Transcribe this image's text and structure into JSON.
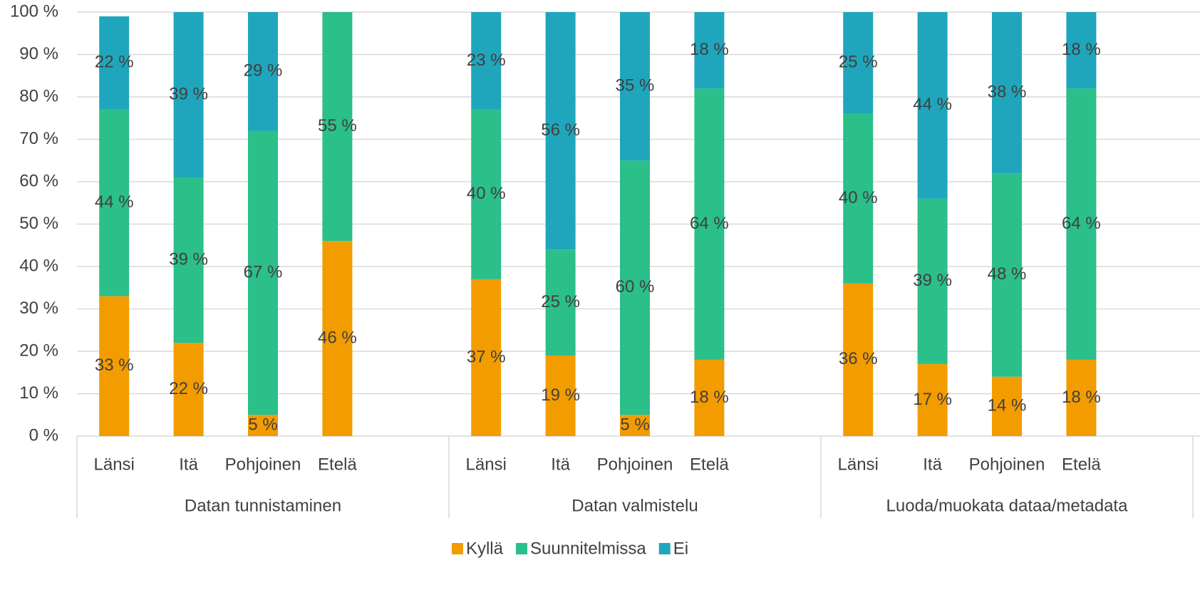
{
  "chart_data": {
    "type": "stacked_bar",
    "groups": [
      {
        "name": "Datan tunnistaminen",
        "categories": [
          "Länsi",
          "Itä",
          "Pohjoinen",
          "Etelä"
        ]
      },
      {
        "name": "Datan valmistelu",
        "categories": [
          "Länsi",
          "Itä",
          "Pohjoinen",
          "Etelä"
        ]
      },
      {
        "name": "Luoda/muokata dataa/metadata",
        "categories": [
          "Länsi",
          "Itä",
          "Pohjoinen",
          "Etelä"
        ]
      }
    ],
    "series": [
      {
        "name": "Kyllä",
        "color": "#f39c00",
        "values": [
          33,
          22,
          5,
          46,
          37,
          19,
          5,
          18,
          36,
          17,
          14,
          18
        ],
        "value_labels": [
          "33 %",
          "22 %",
          "5 %",
          "46 %",
          "37 %",
          "19 %",
          "5 %",
          "18 %",
          "36 %",
          "17 %",
          "14 %",
          "18 %"
        ]
      },
      {
        "name": "Suunnitelmissa",
        "color": "#2bbf8a",
        "values": [
          44,
          39,
          67,
          55,
          40,
          25,
          60,
          64,
          40,
          39,
          48,
          64
        ],
        "value_labels": [
          "44 %",
          "39 %",
          "67 %",
          "55 %",
          "40 %",
          "25 %",
          "60 %",
          "64 %",
          "40 %",
          "39 %",
          "48 %",
          "64 %"
        ]
      },
      {
        "name": "Ei",
        "color": "#1fa6bc",
        "values": [
          22,
          39,
          29,
          null,
          23,
          56,
          35,
          18,
          25,
          44,
          38,
          18
        ],
        "value_labels": [
          "22 %",
          "39 %",
          "29 %",
          null,
          "23 %",
          "56 %",
          "35 %",
          "18 %",
          "25 %",
          "44 %",
          "38 %",
          "18 %"
        ]
      }
    ],
    "ylim": [
      0,
      100
    ],
    "yticks": [
      {
        "value": 0,
        "label": "0 %"
      },
      {
        "value": 10,
        "label": "10 %"
      },
      {
        "value": 20,
        "label": "20 %"
      },
      {
        "value": 30,
        "label": "30 %"
      },
      {
        "value": 40,
        "label": "40 %"
      },
      {
        "value": 50,
        "label": "50 %"
      },
      {
        "value": 60,
        "label": "60 %"
      },
      {
        "value": 70,
        "label": "70 %"
      },
      {
        "value": 80,
        "label": "80 %"
      },
      {
        "value": 90,
        "label": "90 %"
      },
      {
        "value": 100,
        "label": "100 %"
      }
    ],
    "grid": true,
    "legend": "bottom"
  }
}
